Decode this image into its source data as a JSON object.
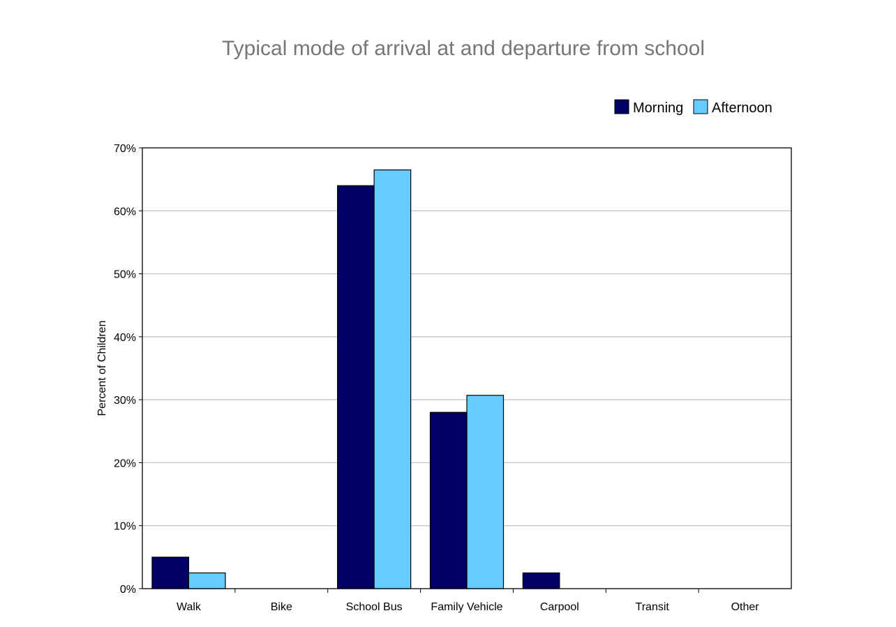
{
  "chart_data": {
    "type": "bar",
    "title": "Typical mode of arrival at and departure from school",
    "ylabel": "Percent of Children",
    "xlabel": "",
    "categories": [
      "Walk",
      "Bike",
      "School Bus",
      "Family Vehicle",
      "Carpool",
      "Transit",
      "Other"
    ],
    "series": [
      {
        "name": "Morning",
        "color": "#000066",
        "values": [
          5,
          0,
          64,
          28,
          2.5,
          0,
          0
        ]
      },
      {
        "name": "Afternoon",
        "color": "#66CCFF",
        "values": [
          2.5,
          0,
          66.5,
          30.7,
          0,
          0,
          0
        ]
      }
    ],
    "ylim": [
      0,
      70
    ],
    "yticks": [
      0,
      10,
      20,
      30,
      40,
      50,
      60,
      70
    ],
    "ytick_labels": [
      "0%",
      "10%",
      "20%",
      "30%",
      "40%",
      "50%",
      "60%",
      "70%"
    ],
    "grid": true,
    "legend_position": "top-right"
  }
}
